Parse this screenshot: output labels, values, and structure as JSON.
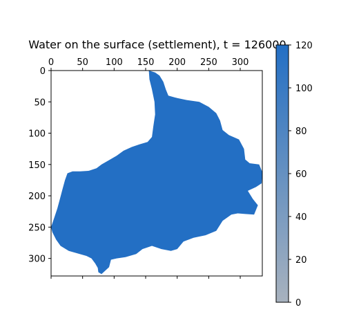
{
  "chart_data": {
    "type": "heatmap",
    "title": "Water on the surface (settlement), t = 126000",
    "xlabel": "",
    "ylabel": "",
    "xlim": [
      0,
      335
    ],
    "ylim": [
      328,
      0
    ],
    "x_ticks": [
      0,
      50,
      100,
      150,
      200,
      250,
      300
    ],
    "x_tick_labels": [
      "0",
      "50",
      "100",
      "150",
      "200",
      "250",
      "300"
    ],
    "y_ticks": [
      0,
      50,
      100,
      150,
      200,
      250,
      300
    ],
    "y_tick_labels": [
      "0",
      "50",
      "100",
      "150",
      "200",
      "250",
      "300"
    ],
    "x_axis_position": "top",
    "grid": false,
    "colormap": {
      "low_color": "#a8b2be",
      "high_color": "#236fc4",
      "min": 0,
      "max": 120
    },
    "colorbar": {
      "ticks": [
        0,
        20,
        40,
        60,
        80,
        100,
        120
      ],
      "tick_labels": [
        "0",
        "20",
        "40",
        "60",
        "80",
        "100",
        "120"
      ]
    },
    "region_value": 120,
    "region_outline": [
      [
        155,
        0
      ],
      [
        165,
        3
      ],
      [
        172,
        8
      ],
      [
        178,
        18
      ],
      [
        182,
        30
      ],
      [
        186,
        40
      ],
      [
        200,
        44
      ],
      [
        215,
        47
      ],
      [
        235,
        50
      ],
      [
        250,
        58
      ],
      [
        262,
        68
      ],
      [
        268,
        80
      ],
      [
        272,
        95
      ],
      [
        282,
        103
      ],
      [
        298,
        110
      ],
      [
        306,
        125
      ],
      [
        308,
        142
      ],
      [
        315,
        148
      ],
      [
        330,
        150
      ],
      [
        335,
        162
      ],
      [
        334,
        180
      ],
      [
        325,
        186
      ],
      [
        312,
        192
      ],
      [
        320,
        205
      ],
      [
        328,
        215
      ],
      [
        322,
        230
      ],
      [
        308,
        229
      ],
      [
        296,
        228
      ],
      [
        286,
        230
      ],
      [
        272,
        240
      ],
      [
        262,
        256
      ],
      [
        245,
        263
      ],
      [
        226,
        267
      ],
      [
        210,
        273
      ],
      [
        200,
        285
      ],
      [
        190,
        288
      ],
      [
        175,
        285
      ],
      [
        160,
        280
      ],
      [
        145,
        285
      ],
      [
        135,
        293
      ],
      [
        118,
        298
      ],
      [
        104,
        300
      ],
      [
        95,
        302
      ],
      [
        92,
        314
      ],
      [
        80,
        325
      ],
      [
        75,
        322
      ],
      [
        74,
        315
      ],
      [
        70,
        308
      ],
      [
        64,
        300
      ],
      [
        56,
        296
      ],
      [
        42,
        292
      ],
      [
        28,
        288
      ],
      [
        15,
        280
      ],
      [
        8,
        270
      ],
      [
        2,
        258
      ],
      [
        0,
        250
      ],
      [
        5,
        235
      ],
      [
        10,
        220
      ],
      [
        14,
        205
      ],
      [
        18,
        190
      ],
      [
        22,
        175
      ],
      [
        26,
        164
      ],
      [
        34,
        161
      ],
      [
        46,
        161
      ],
      [
        60,
        160
      ],
      [
        72,
        156
      ],
      [
        80,
        150
      ],
      [
        92,
        143
      ],
      [
        104,
        136
      ],
      [
        115,
        128
      ],
      [
        128,
        122
      ],
      [
        140,
        118
      ],
      [
        153,
        114
      ],
      [
        160,
        106
      ],
      [
        162,
        90
      ],
      [
        165,
        70
      ],
      [
        164,
        50
      ],
      [
        160,
        30
      ],
      [
        156,
        14
      ]
    ]
  }
}
